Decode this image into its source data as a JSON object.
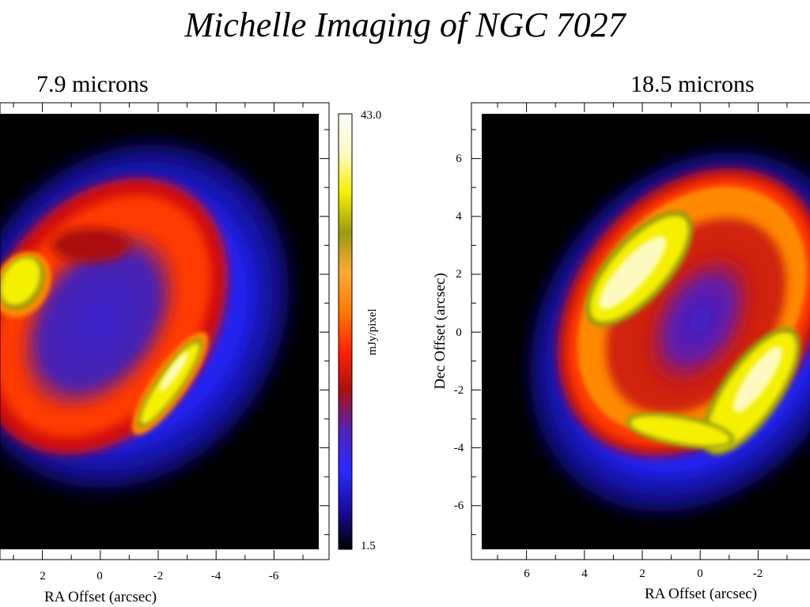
{
  "title": "Michelle Imaging of NGC 7027",
  "panels": {
    "left": {
      "label": "7.9 microns",
      "xaxis_title": "RA Offset (arcsec)",
      "xticks": [
        "2",
        "0",
        "-2",
        "-4",
        "-6"
      ]
    },
    "right": {
      "label": "18.5 microns",
      "xaxis_title": "RA Offset (arcsec)",
      "yaxis_title": "Dec Offset (arcsec)",
      "xticks": [
        "6",
        "4",
        "2",
        "0",
        "-2"
      ],
      "yticks": [
        "6",
        "4",
        "2",
        "0",
        "-2",
        "-4",
        "-6"
      ]
    }
  },
  "colorbar": {
    "max_label": "43.0",
    "min_label": "1.5",
    "unit_label": "mJy/pixel",
    "colors": [
      "#000000",
      "#1a0ba0",
      "#2a2aff",
      "#5522bb",
      "#aa1010",
      "#ff2200",
      "#ff7a00",
      "#ffaa33",
      "#9a9a10",
      "#f4f000",
      "#fffbc0",
      "#ffffff"
    ]
  }
}
